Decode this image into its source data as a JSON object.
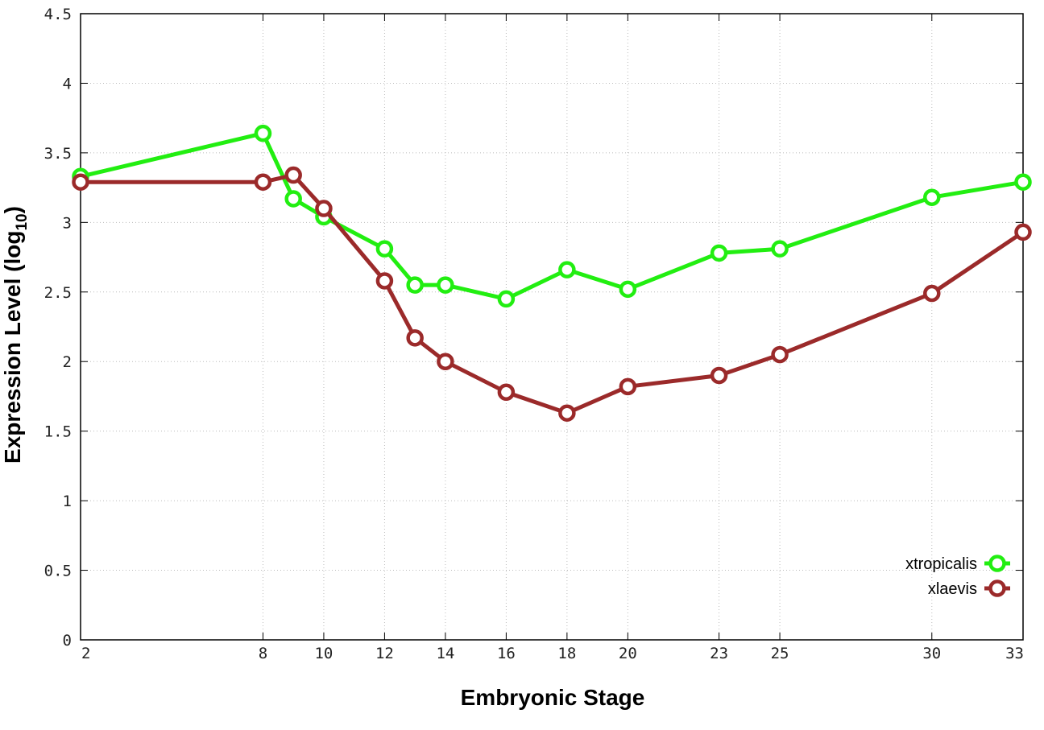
{
  "chart_data": {
    "type": "line",
    "xlabel": "Embryonic Stage",
    "ylabel": "Expression Level (log",
    "ylabel_subscript": "10",
    "ylabel_suffix": ")",
    "xlim": [
      2,
      33
    ],
    "ylim": [
      0,
      4.5
    ],
    "x_ticks": [
      2,
      8,
      10,
      12,
      14,
      16,
      18,
      20,
      23,
      25,
      30,
      33
    ],
    "y_ticks": [
      0,
      0.5,
      1,
      1.5,
      2,
      2.5,
      3,
      3.5,
      4,
      4.5
    ],
    "grid": true,
    "legend_position": "bottom-right",
    "series": [
      {
        "name": "xtropicalis",
        "color": "#22ee11",
        "x": [
          2,
          8,
          9,
          10,
          12,
          13,
          14,
          16,
          18,
          20,
          23,
          25,
          30,
          33
        ],
        "values": [
          3.33,
          3.64,
          3.17,
          3.04,
          2.81,
          2.55,
          2.55,
          2.45,
          2.66,
          2.52,
          2.78,
          2.81,
          3.18,
          3.29
        ]
      },
      {
        "name": "xlaevis",
        "color": "#9b2a2a",
        "x": [
          2,
          8,
          9,
          10,
          12,
          13,
          14,
          16,
          18,
          20,
          23,
          25,
          30,
          33
        ],
        "values": [
          3.29,
          3.29,
          3.34,
          3.1,
          2.58,
          2.17,
          2.0,
          1.78,
          1.63,
          1.82,
          1.9,
          2.05,
          2.49,
          2.93
        ]
      }
    ]
  }
}
